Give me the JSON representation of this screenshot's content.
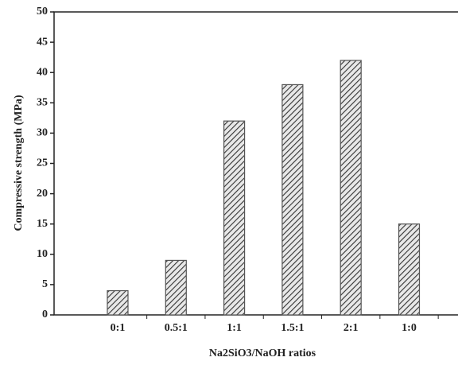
{
  "chart_data": {
    "type": "bar",
    "x_label": "Na2SiO3/NaOH ratios",
    "y_label": "Compressive strength (MPa)",
    "categories": [
      "0:1",
      "0.5:1",
      "1:1",
      "1.5:1",
      "2:1",
      "1:0"
    ],
    "values": [
      4,
      9,
      32,
      38,
      42,
      15
    ],
    "color": "#555555",
    "ylim": [
      0,
      50
    ],
    "yticks": [
      0,
      5,
      10,
      15,
      20,
      25,
      30,
      35,
      40,
      45,
      50
    ],
    "grid": false
  }
}
